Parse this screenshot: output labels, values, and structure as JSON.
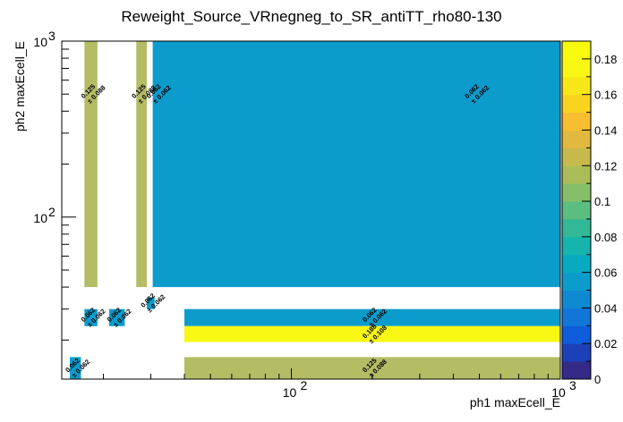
{
  "chart_data": {
    "type": "heatmap",
    "title": "Reweight_Source_VRnegneg_to_SR_antiTT_rho80-130",
    "xlabel": "ph1 maxEcell_E",
    "ylabel": "ph2 maxEcell_E",
    "xscale": "log",
    "yscale": "log",
    "xlim": [
      14,
      1000
    ],
    "ylim": [
      12,
      1000
    ],
    "zlim": [
      0,
      0.19
    ],
    "x_ticks": [
      {
        "value": 100,
        "base": "10",
        "exp": "2"
      },
      {
        "value": 1000,
        "base": "10",
        "exp": "3"
      }
    ],
    "y_ticks": [
      {
        "value": 100,
        "base": "10",
        "exp": "2"
      },
      {
        "value": 1000,
        "base": "10",
        "exp": "3"
      }
    ],
    "colorbar_ticks": [
      "0",
      "0.02",
      "0.04",
      "0.06",
      "0.08",
      "0.1",
      "0.12",
      "0.14",
      "0.16",
      "0.18"
    ],
    "cells": [
      {
        "x0": 17.0,
        "x1": 19.0,
        "y0": 40,
        "y1": 1000,
        "value": 0.125,
        "label": "0.125",
        "error": "± 0.088"
      },
      {
        "x0": 26.5,
        "x1": 29.0,
        "y0": 40,
        "y1": 1000,
        "value": 0.125,
        "label": "0.125",
        "error": "± 0.088"
      },
      {
        "x0": 30.5,
        "x1": 1000,
        "y0": 40,
        "y1": 1000,
        "value": 0.062,
        "label": "0.062",
        "error": "± 0.062",
        "label_x": 31.5
      },
      {
        "x0": 30.5,
        "x1": 1000,
        "y0": 40,
        "y1": 1000,
        "value": null,
        "label": "0.062",
        "error": "± 0.062",
        "label_x": 480
      },
      {
        "x0": 29.0,
        "x1": 31.0,
        "y0": 30,
        "y1": 35,
        "value": 0.062,
        "label": "0.062",
        "error": "± 0.062"
      },
      {
        "x0": 17.0,
        "x1": 19.0,
        "y0": 24,
        "y1": 30,
        "value": 0.062,
        "label": "0.062",
        "error": "± 0.062"
      },
      {
        "x0": 21.0,
        "x1": 24.0,
        "y0": 24,
        "y1": 30,
        "value": 0.062,
        "label": "0.062",
        "error": "± 0.062"
      },
      {
        "x0": 15.0,
        "x1": 16.5,
        "y0": 12,
        "y1": 16,
        "value": 0.062,
        "label": "0.062",
        "error": "± 0.062"
      },
      {
        "x0": 40.0,
        "x1": 1000,
        "y0": 24,
        "y1": 30,
        "value": 0.062,
        "label": "0.062",
        "error": "± 0.062"
      },
      {
        "x0": 40.0,
        "x1": 1000,
        "y0": 19.5,
        "y1": 24,
        "value": 0.188,
        "label": "0.188",
        "error": "± 0.108"
      },
      {
        "x0": 40.0,
        "x1": 1000,
        "y0": 12,
        "y1": 16,
        "value": 0.125,
        "label": "0.125",
        "error": "± 0.088"
      }
    ],
    "colors": {
      "v0062": "#0c9ccc",
      "v0125": "#b4bc64",
      "v0188": "#f8f814"
    }
  }
}
